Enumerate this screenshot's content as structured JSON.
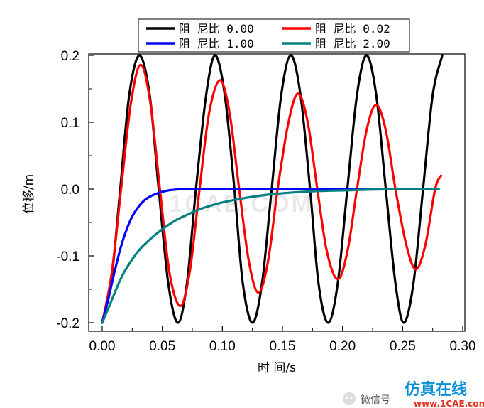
{
  "chart_data": {
    "type": "line",
    "xlabel": "时 间/s",
    "ylabel": "位移/m",
    "xlim": [
      0.0,
      0.3
    ],
    "ylim": [
      -0.2,
      0.2
    ],
    "xticks": [
      0.0,
      0.05,
      0.1,
      0.15,
      0.2,
      0.25,
      0.3
    ],
    "xtick_labels": [
      "0.00",
      "0.05",
      "0.10",
      "0.15",
      "0.20",
      "0.25",
      "0.30"
    ],
    "yticks": [
      -0.2,
      -0.1,
      0.0,
      0.1,
      0.2
    ],
    "ytick_labels": [
      "-0.2",
      "-0.1",
      "0.0",
      "0.1",
      "0.2"
    ],
    "legend_placement": "top-center",
    "series": [
      {
        "name": "阻 尼比 0.00",
        "color": "#000000",
        "x": [
          0.0,
          0.0075,
          0.015,
          0.0225,
          0.031,
          0.0395,
          0.047,
          0.055,
          0.063,
          0.0705,
          0.078,
          0.0865,
          0.094,
          0.102,
          0.11,
          0.117,
          0.125,
          0.133,
          0.141,
          0.149,
          0.157,
          0.165,
          0.173,
          0.18,
          0.188,
          0.196,
          0.204,
          0.212,
          0.22,
          0.228,
          0.236,
          0.244,
          0.251,
          0.259,
          0.267,
          0.275,
          0.283
        ],
        "y": [
          -0.2,
          -0.138,
          0.0,
          0.141,
          0.2,
          0.141,
          0.0,
          -0.141,
          -0.2,
          -0.141,
          0.0,
          0.141,
          0.2,
          0.141,
          0.0,
          -0.141,
          -0.2,
          -0.141,
          0.0,
          0.141,
          0.2,
          0.141,
          0.0,
          -0.141,
          -0.2,
          -0.141,
          0.0,
          0.141,
          0.2,
          0.141,
          0.0,
          -0.141,
          -0.2,
          -0.141,
          0.0,
          0.141,
          0.2
        ]
      },
      {
        "name": "阻 尼比 0.02",
        "color": "#ff0000",
        "x": [
          0.0,
          0.008,
          0.016,
          0.024,
          0.032,
          0.04,
          0.048,
          0.056,
          0.065,
          0.073,
          0.081,
          0.089,
          0.098,
          0.106,
          0.114,
          0.122,
          0.13,
          0.138,
          0.146,
          0.155,
          0.163,
          0.171,
          0.179,
          0.187,
          0.196,
          0.204,
          0.212,
          0.22,
          0.228,
          0.236,
          0.244,
          0.253,
          0.261,
          0.269,
          0.277,
          0.282
        ],
        "y": [
          -0.2,
          -0.125,
          0.005,
          0.13,
          0.186,
          0.13,
          0.0,
          -0.125,
          -0.175,
          -0.122,
          0.0,
          0.114,
          0.163,
          0.114,
          0.0,
          -0.108,
          -0.155,
          -0.108,
          0.0,
          0.1,
          0.143,
          0.1,
          0.0,
          -0.094,
          -0.135,
          -0.094,
          0.0,
          0.088,
          0.126,
          0.088,
          0.0,
          -0.083,
          -0.12,
          -0.083,
          0.0,
          0.02
        ]
      },
      {
        "name": "阻 尼比 1.00",
        "color": "#0000ff",
        "x": [
          0.0,
          0.005,
          0.01,
          0.015,
          0.02,
          0.025,
          0.03,
          0.035,
          0.04,
          0.045,
          0.05,
          0.055,
          0.06,
          0.07,
          0.08,
          0.1,
          0.15,
          0.2,
          0.25,
          0.28
        ],
        "y": [
          -0.2,
          -0.165,
          -0.126,
          -0.09,
          -0.062,
          -0.041,
          -0.027,
          -0.017,
          -0.011,
          -0.007,
          -0.004,
          -0.002,
          -0.001,
          0.0,
          0.0,
          0.0,
          0.0,
          0.0,
          0.0,
          0.0
        ]
      },
      {
        "name": "阻 尼比 2.00",
        "color": "#008080",
        "x": [
          0.0,
          0.005,
          0.01,
          0.015,
          0.02,
          0.03,
          0.04,
          0.05,
          0.06,
          0.07,
          0.08,
          0.09,
          0.1,
          0.12,
          0.14,
          0.16,
          0.18,
          0.2,
          0.22,
          0.25,
          0.28
        ],
        "y": [
          -0.2,
          -0.179,
          -0.157,
          -0.136,
          -0.119,
          -0.093,
          -0.075,
          -0.06,
          -0.048,
          -0.039,
          -0.031,
          -0.025,
          -0.02,
          -0.013,
          -0.008,
          -0.005,
          -0.003,
          -0.002,
          -0.001,
          0.0,
          0.0
        ]
      }
    ]
  },
  "watermark": {
    "center_text": "1CAE.COM",
    "footer_text": "微信号",
    "brand_text": "仿真在线",
    "site_text": "www.1CAE.com"
  }
}
